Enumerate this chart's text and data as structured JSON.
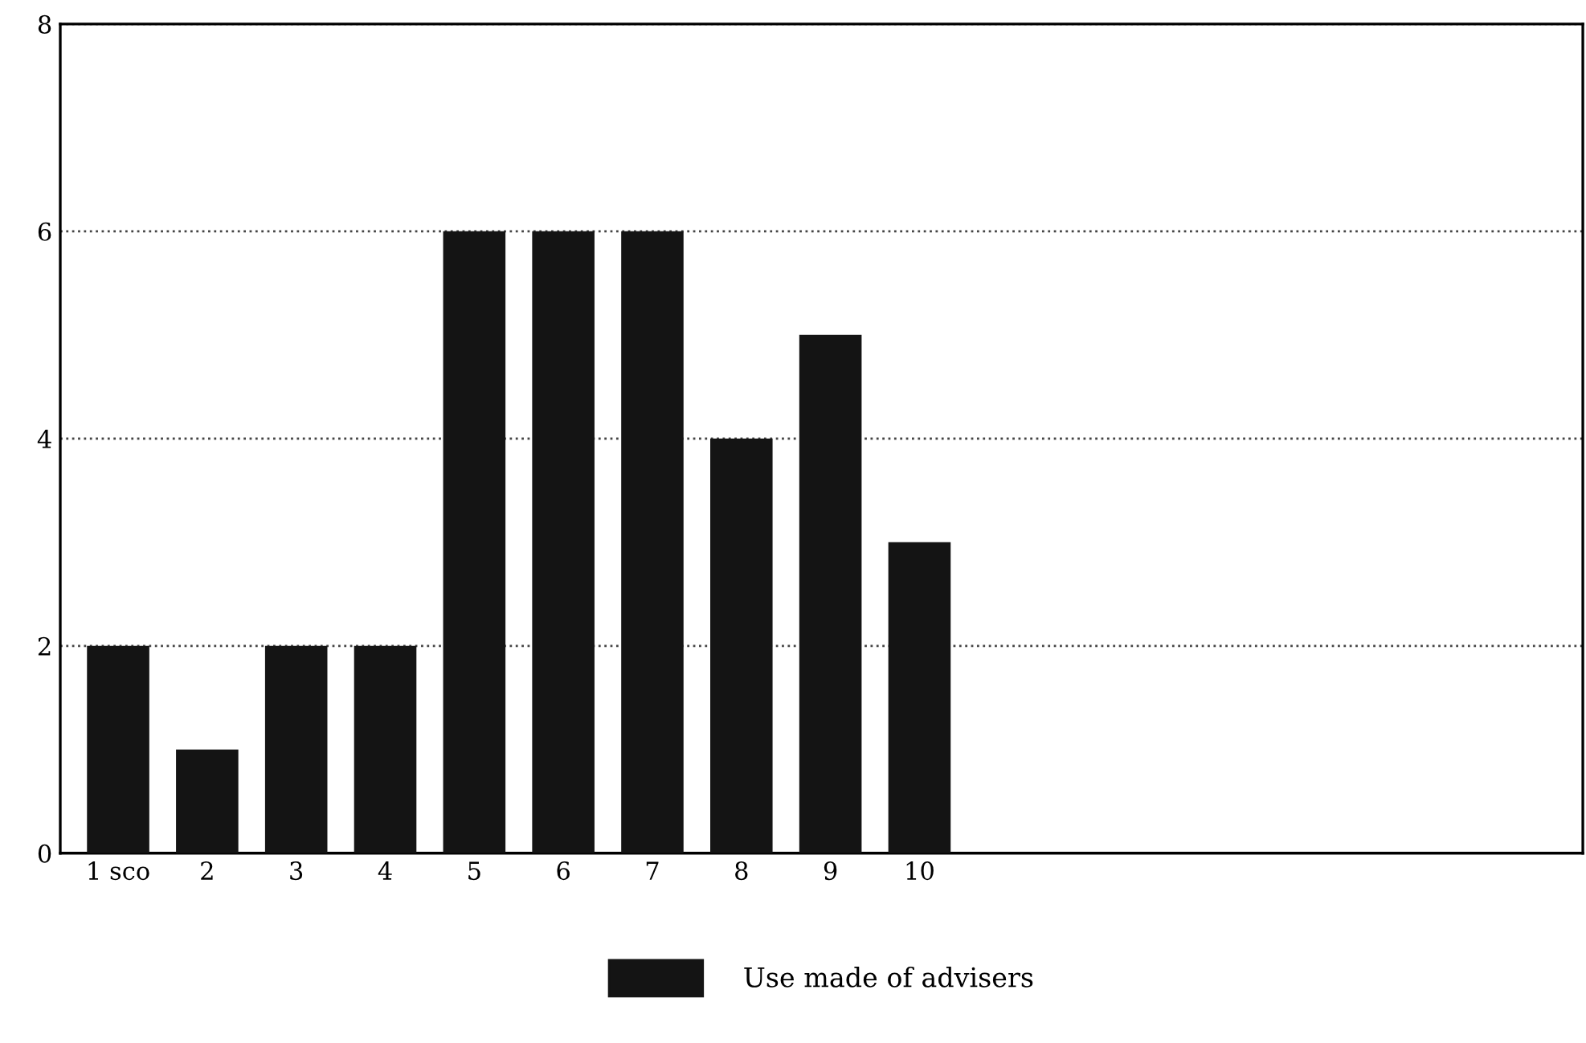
{
  "chart_data": {
    "type": "bar",
    "categories": [
      "1 sco",
      "2",
      "3",
      "4",
      "5",
      "6",
      "7",
      "8",
      "9",
      "10",
      null,
      null,
      null,
      null,
      null,
      null,
      null
    ],
    "series": [
      {
        "name": "Use made of advisers",
        "color": "#141414",
        "values": [
          2,
          1,
          2,
          2,
          6,
          6,
          6,
          4,
          5,
          3,
          null,
          null,
          null,
          null,
          null,
          null,
          null
        ]
      }
    ],
    "ylim": [
      0,
      8
    ],
    "yticks": [
      0,
      2,
      4,
      6,
      8
    ],
    "grid": "y",
    "legend": "bottom"
  }
}
